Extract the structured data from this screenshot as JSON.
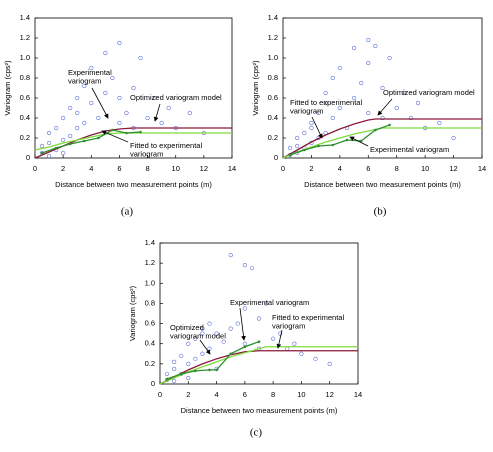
{
  "chart_data": [
    {
      "type": "scatter",
      "label": "(a)",
      "xlabel": "Distance between two measurement points (m)",
      "ylabel": "Variogram (cps²)",
      "xlim": [
        0,
        14
      ],
      "xticks": [
        0,
        2,
        4,
        6,
        8,
        10,
        12,
        14
      ],
      "ylim": [
        0,
        1.4
      ],
      "yticks": [
        0,
        0.2,
        0.4,
        0.6,
        0.8,
        {
          "value": 1,
          "label": "1.0"
        },
        1.2,
        1.4
      ],
      "series": [
        {
          "mode": "markers",
          "color": "#5b6fd6",
          "x": [
            0.5,
            0.5,
            1,
            1,
            1,
            1.5,
            1.5,
            2,
            2,
            2,
            2.5,
            2.5,
            3,
            3,
            3,
            3.5,
            3.5,
            4,
            4,
            4.5,
            5,
            5,
            5.5,
            6,
            6,
            6,
            6.5,
            7,
            7,
            7.5,
            8,
            8.5,
            9,
            9.5,
            10,
            11,
            12
          ],
          "values": [
            0.05,
            0.12,
            0.15,
            0.25,
            0.02,
            0.3,
            0.08,
            0.4,
            0.18,
            0.05,
            0.5,
            0.22,
            0.6,
            0.3,
            0.45,
            0.35,
            0.72,
            0.55,
            0.9,
            0.4,
            0.65,
            1.05,
            0.8,
            1.15,
            0.35,
            0.6,
            0.45,
            0.3,
            0.7,
            1.0,
            0.4,
            0.6,
            0.35,
            0.5,
            0.3,
            0.45,
            0.25
          ]
        },
        {
          "mode": "lines",
          "color": "#8b1a3a",
          "x": [
            0,
            1,
            2,
            3,
            4,
            5,
            6,
            7,
            14
          ],
          "values": [
            0,
            0.06,
            0.12,
            0.18,
            0.23,
            0.27,
            0.29,
            0.3,
            0.3
          ]
        },
        {
          "mode": "lines",
          "color": "#7ddc3c",
          "x": [
            0,
            1,
            2,
            3,
            4,
            5,
            6,
            14
          ],
          "values": [
            0.08,
            0.11,
            0.15,
            0.18,
            0.21,
            0.24,
            0.25,
            0.25
          ]
        },
        {
          "mode": "lines+markers",
          "color": "#2f8f2f",
          "x": [
            0.5,
            1.5,
            2.5,
            3.5,
            4.5,
            5.5,
            6.5,
            7.5
          ],
          "values": [
            0.05,
            0.1,
            0.14,
            0.17,
            0.2,
            0.28,
            0.25,
            0.26
          ]
        }
      ],
      "annotations": [
        "Experimental\nvariogram",
        "Optimized variogram model",
        "Fitted to experimental\nvariogram"
      ]
    },
    {
      "type": "scatter",
      "label": "(b)",
      "xlabel": "Distance between two measurement points (m)",
      "ylabel": "Variogram (cps²)",
      "xlim": [
        0,
        14
      ],
      "xticks": [
        0,
        2,
        4,
        6,
        8,
        10,
        12,
        14
      ],
      "ylim": [
        0,
        1.4
      ],
      "yticks": [
        0,
        0.2,
        0.4,
        0.6,
        0.8,
        {
          "value": 1,
          "label": "1.0"
        },
        1.2,
        1.4
      ],
      "series": [
        {
          "mode": "markers",
          "color": "#5b6fd6",
          "x": [
            0.5,
            0.5,
            1,
            1,
            1,
            1.5,
            1.5,
            2,
            2,
            2,
            2.5,
            2.5,
            3,
            3,
            3,
            3.5,
            3.5,
            4,
            4,
            4.5,
            5,
            5,
            5.5,
            6,
            6,
            6,
            6.5,
            7,
            7,
            7.5,
            8,
            8.5,
            9,
            9.5,
            10,
            11,
            12
          ],
          "values": [
            0.03,
            0.1,
            0.12,
            0.2,
            0.05,
            0.25,
            0.1,
            0.35,
            0.15,
            0.3,
            0.45,
            0.2,
            0.55,
            0.25,
            0.65,
            0.4,
            0.8,
            0.5,
            0.9,
            0.3,
            0.6,
            1.1,
            0.75,
            1.18,
            0.45,
            0.95,
            1.12,
            0.4,
            0.7,
            1.0,
            0.5,
            0.65,
            0.4,
            0.55,
            0.3,
            0.35,
            0.2
          ]
        },
        {
          "mode": "lines",
          "color": "#8b1a3a",
          "x": [
            0,
            1,
            2,
            3,
            4,
            5,
            6,
            6.5,
            14
          ],
          "values": [
            0,
            0.08,
            0.16,
            0.23,
            0.29,
            0.34,
            0.38,
            0.39,
            0.39
          ]
        },
        {
          "mode": "lines",
          "color": "#7ddc3c",
          "x": [
            0,
            1,
            2,
            3,
            4,
            5,
            6,
            7,
            14
          ],
          "values": [
            0,
            0.06,
            0.11,
            0.16,
            0.2,
            0.24,
            0.27,
            0.3,
            0.3
          ]
        },
        {
          "mode": "lines+markers",
          "color": "#2f8f2f",
          "x": [
            0.5,
            1.5,
            2.5,
            3.5,
            4.5,
            5.5,
            6.5,
            7.5
          ],
          "values": [
            0.03,
            0.08,
            0.12,
            0.13,
            0.18,
            0.17,
            0.28,
            0.33
          ]
        }
      ],
      "annotations": [
        "Optimized variogram model",
        "Fitted to experimental\nvariogram",
        "Experimental variogram"
      ]
    },
    {
      "type": "scatter",
      "label": "(c)",
      "xlabel": "Distance between two measurement points (m)",
      "ylabel": "Variogram (cps²)",
      "xlim": [
        0,
        14
      ],
      "xticks": [
        0,
        2,
        4,
        6,
        8,
        10,
        12,
        14
      ],
      "ylim": [
        0,
        1.4
      ],
      "yticks": [
        0,
        0.2,
        0.4,
        0.6,
        0.8,
        {
          "value": 1,
          "label": "1.0"
        },
        1.2,
        1.4
      ],
      "series": [
        {
          "mode": "markers",
          "color": "#5b6fd6",
          "x": [
            0.5,
            0.5,
            1,
            1,
            1,
            1.5,
            1.5,
            2,
            2,
            2,
            2.5,
            2.5,
            3,
            3,
            3,
            3.5,
            3.5,
            4,
            4,
            4.5,
            5,
            5,
            5.5,
            6,
            6,
            6,
            6.5,
            7,
            7,
            7.5,
            8,
            8.5,
            9,
            9.5,
            10,
            11,
            12
          ],
          "values": [
            0.04,
            0.1,
            0.15,
            0.22,
            0.03,
            0.28,
            0.1,
            0.4,
            0.2,
            0.06,
            0.45,
            0.25,
            0.55,
            0.3,
            0.5,
            0.35,
            0.6,
            0.5,
            0.15,
            0.42,
            0.55,
            1.28,
            0.6,
            1.18,
            0.4,
            0.75,
            1.15,
            0.35,
            0.65,
            0.8,
            0.45,
            0.5,
            0.35,
            0.4,
            0.3,
            0.25,
            0.2
          ]
        },
        {
          "mode": "lines",
          "color": "#8b1a3a",
          "x": [
            0,
            1,
            2,
            3,
            4,
            5,
            6,
            7,
            14
          ],
          "values": [
            0,
            0.07,
            0.14,
            0.2,
            0.25,
            0.29,
            0.32,
            0.33,
            0.33
          ]
        },
        {
          "mode": "lines",
          "color": "#7ddc3c",
          "x": [
            0,
            1,
            2,
            3,
            4,
            5,
            6,
            7,
            7.5,
            14
          ],
          "values": [
            0,
            0.06,
            0.12,
            0.17,
            0.22,
            0.27,
            0.31,
            0.35,
            0.37,
            0.37
          ]
        },
        {
          "mode": "lines+markers",
          "color": "#2f8f2f",
          "x": [
            0.5,
            1.5,
            2.5,
            3.5,
            4,
            5,
            6,
            7
          ],
          "values": [
            0.05,
            0.1,
            0.13,
            0.14,
            0.14,
            0.3,
            0.37,
            0.42
          ]
        }
      ],
      "annotations": [
        "Experimental variogram",
        "Fitted to experimental\nvariogram",
        "Optimized\nvariogram model"
      ]
    }
  ]
}
